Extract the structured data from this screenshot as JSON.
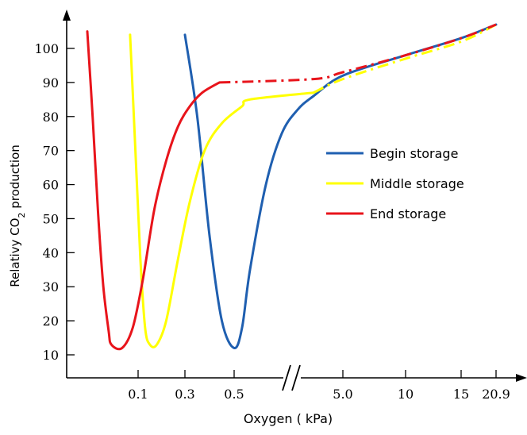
{
  "chart_data": {
    "type": "line",
    "xlabel": "Oxygen ( kPa)",
    "ylabel": "Relativy CO2 production",
    "x_ticks": [
      "0.1",
      "0.3",
      "0.5",
      "5.0",
      "10",
      "15",
      "20.9"
    ],
    "y_ticks": [
      10,
      20,
      30,
      40,
      50,
      60,
      70,
      80,
      90,
      100
    ],
    "ylim": [
      8,
      110
    ],
    "axis_break": "between 0.5 and 5.0",
    "legend_position": "right",
    "series": [
      {
        "name": "Begin storage",
        "color": "#1f5fb0",
        "points": [
          [
            0.3,
            104
          ],
          [
            0.35,
            80
          ],
          [
            0.4,
            45
          ],
          [
            0.45,
            20
          ],
          [
            0.5,
            12
          ],
          [
            0.55,
            18
          ],
          [
            0.6,
            35
          ],
          [
            0.7,
            60
          ],
          [
            0.8,
            75
          ],
          [
            0.9,
            82
          ],
          [
            1.0,
            86
          ],
          [
            5.0,
            92
          ],
          [
            10,
            98
          ],
          [
            15,
            103
          ],
          [
            20.9,
            107
          ]
        ],
        "dashed_from_index": 99
      },
      {
        "name": "Middle storage",
        "color": "#ffff00",
        "points": [
          [
            0.07,
            104
          ],
          [
            0.09,
            70
          ],
          [
            0.11,
            38
          ],
          [
            0.13,
            18
          ],
          [
            0.15,
            13
          ],
          [
            0.18,
            13
          ],
          [
            0.22,
            20
          ],
          [
            0.27,
            38
          ],
          [
            0.32,
            55
          ],
          [
            0.38,
            70
          ],
          [
            0.45,
            78
          ],
          [
            0.55,
            83
          ],
          [
            0.6,
            85
          ],
          [
            1.0,
            87
          ],
          [
            5.0,
            91
          ],
          [
            10,
            97
          ],
          [
            15,
            102
          ],
          [
            20.9,
            107
          ]
        ],
        "dashed_from_index": 13
      },
      {
        "name": "End storage",
        "color": "#e8141b",
        "points": [
          [
            -0.09,
            105
          ],
          [
            -0.07,
            80
          ],
          [
            -0.05,
            52
          ],
          [
            -0.03,
            30
          ],
          [
            -0.01,
            17
          ],
          [
            0.0,
            13
          ],
          [
            0.04,
            12
          ],
          [
            0.08,
            18
          ],
          [
            0.12,
            32
          ],
          [
            0.17,
            53
          ],
          [
            0.22,
            67
          ],
          [
            0.27,
            77
          ],
          [
            0.32,
            83
          ],
          [
            0.37,
            87
          ],
          [
            0.44,
            90
          ],
          [
            1.0,
            91
          ],
          [
            5.0,
            93
          ],
          [
            10,
            98
          ],
          [
            15,
            103
          ],
          [
            20.9,
            107
          ]
        ],
        "dashed_from_index": 14
      }
    ],
    "note": "x-axis positions are categorical ticks with a scale break; curve x values use tick-relative positions"
  }
}
